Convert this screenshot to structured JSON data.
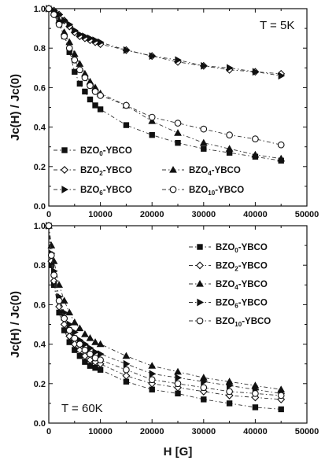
{
  "chart_data": [
    {
      "type": "line",
      "annotation": "T = 5K",
      "xlabel": "",
      "ylabel": "Jc(H) / Jc(0)",
      "xlim": [
        0,
        50000
      ],
      "ylim": [
        0.0,
        1.0
      ],
      "xticks": [
        "0",
        "10000",
        "20000",
        "30000",
        "40000",
        "50000"
      ],
      "yticks": [
        "0.0",
        "0.2",
        "0.4",
        "0.6",
        "0.8",
        "1.0"
      ],
      "legend_position": "bottom-left",
      "series": [
        {
          "name": "BZO0-YBCO",
          "label_base": "BZO",
          "label_sub": "0",
          "label_tail": "-YBCO",
          "marker": "square-filled",
          "x": [
            0,
            1000,
            2000,
            3000,
            4000,
            5000,
            6000,
            7000,
            8000,
            9000,
            10000,
            15000,
            20000,
            25000,
            30000,
            35000,
            40000,
            45000
          ],
          "y": [
            1.0,
            0.98,
            0.93,
            0.86,
            0.78,
            0.68,
            0.62,
            0.58,
            0.54,
            0.51,
            0.49,
            0.41,
            0.36,
            0.32,
            0.29,
            0.27,
            0.25,
            0.23
          ]
        },
        {
          "name": "BZO2-YBCO",
          "label_base": "BZO",
          "label_sub": "2",
          "label_tail": "-YBCO",
          "marker": "diamond-open",
          "x": [
            0,
            1000,
            2000,
            3000,
            4000,
            5000,
            6000,
            7000,
            8000,
            9000,
            10000,
            15000,
            20000,
            25000,
            30000,
            35000,
            40000,
            45000
          ],
          "y": [
            1.0,
            0.99,
            0.97,
            0.94,
            0.91,
            0.88,
            0.86,
            0.85,
            0.84,
            0.83,
            0.82,
            0.79,
            0.76,
            0.73,
            0.71,
            0.69,
            0.68,
            0.67
          ]
        },
        {
          "name": "BZO4-YBCO",
          "label_base": "BZO",
          "label_sub": "4",
          "label_tail": "-YBCO",
          "marker": "triangle-filled",
          "x": [
            0,
            1000,
            2000,
            3000,
            4000,
            5000,
            6000,
            7000,
            8000,
            9000,
            10000,
            15000,
            20000,
            25000,
            30000,
            35000,
            40000,
            45000
          ],
          "y": [
            1.0,
            0.98,
            0.94,
            0.88,
            0.83,
            0.77,
            0.72,
            0.67,
            0.63,
            0.6,
            0.57,
            0.51,
            0.43,
            0.37,
            0.32,
            0.29,
            0.26,
            0.24
          ]
        },
        {
          "name": "BZO6-YBCO",
          "label_base": "BZO",
          "label_sub": "6",
          "label_tail": "-YBCO",
          "marker": "right-triangle-filled",
          "x": [
            0,
            1000,
            2000,
            3000,
            4000,
            5000,
            6000,
            7000,
            8000,
            9000,
            10000,
            15000,
            20000,
            25000,
            30000,
            35000,
            40000,
            45000
          ],
          "y": [
            1.0,
            0.99,
            0.97,
            0.94,
            0.92,
            0.89,
            0.87,
            0.86,
            0.85,
            0.84,
            0.83,
            0.79,
            0.76,
            0.74,
            0.71,
            0.7,
            0.68,
            0.66
          ]
        },
        {
          "name": "BZO10-YBCO",
          "label_base": "BZO",
          "label_sub": "10",
          "label_tail": "-YBCO",
          "marker": "circle-open",
          "x": [
            0,
            1000,
            2000,
            3000,
            4000,
            5000,
            6000,
            7000,
            8000,
            9000,
            10000,
            15000,
            20000,
            25000,
            30000,
            35000,
            40000,
            45000
          ],
          "y": [
            1.0,
            0.97,
            0.92,
            0.86,
            0.8,
            0.74,
            0.69,
            0.65,
            0.61,
            0.58,
            0.56,
            0.51,
            0.45,
            0.42,
            0.39,
            0.36,
            0.34,
            0.31
          ]
        }
      ]
    },
    {
      "type": "line",
      "annotation": "T = 60K",
      "xlabel": "H [G]",
      "ylabel": "Jc(H) / Jc(0)",
      "xlim": [
        0,
        50000
      ],
      "ylim": [
        0.0,
        1.0
      ],
      "xticks": [
        "0",
        "10000",
        "20000",
        "30000",
        "40000",
        "50000"
      ],
      "yticks": [
        "0.0",
        "0.2",
        "0.4",
        "0.6",
        "0.8",
        "1.0"
      ],
      "legend_position": "top-right",
      "series": [
        {
          "name": "BZO0-YBCO",
          "label_base": "BZO",
          "label_sub": "0",
          "label_tail": "-YBCO",
          "marker": "square-filled",
          "x": [
            0,
            500,
            1000,
            2000,
            3000,
            4000,
            5000,
            6000,
            7000,
            8000,
            9000,
            10000,
            15000,
            20000,
            25000,
            30000,
            35000,
            40000,
            45000
          ],
          "y": [
            1.0,
            0.8,
            0.7,
            0.56,
            0.47,
            0.41,
            0.37,
            0.34,
            0.31,
            0.29,
            0.28,
            0.27,
            0.21,
            0.17,
            0.15,
            0.12,
            0.1,
            0.08,
            0.07
          ]
        },
        {
          "name": "BZO2-YBCO",
          "label_base": "BZO",
          "label_sub": "2",
          "label_tail": "-YBCO",
          "marker": "diamond-open",
          "x": [
            0,
            500,
            1000,
            2000,
            3000,
            4000,
            5000,
            6000,
            7000,
            8000,
            9000,
            10000,
            15000,
            20000,
            25000,
            30000,
            35000,
            40000,
            45000
          ],
          "y": [
            1.0,
            0.82,
            0.72,
            0.59,
            0.5,
            0.44,
            0.4,
            0.37,
            0.34,
            0.32,
            0.31,
            0.3,
            0.24,
            0.2,
            0.18,
            0.16,
            0.14,
            0.13,
            0.12
          ]
        },
        {
          "name": "BZO4-YBCO",
          "label_base": "BZO",
          "label_sub": "4",
          "label_tail": "-YBCO",
          "marker": "triangle-filled",
          "x": [
            0,
            500,
            1000,
            2000,
            3000,
            4000,
            5000,
            6000,
            7000,
            8000,
            9000,
            10000,
            15000,
            20000,
            25000,
            30000,
            35000,
            40000,
            45000
          ],
          "y": [
            1.0,
            0.9,
            0.82,
            0.7,
            0.62,
            0.56,
            0.51,
            0.48,
            0.45,
            0.43,
            0.41,
            0.4,
            0.34,
            0.29,
            0.26,
            0.23,
            0.21,
            0.19,
            0.17
          ]
        },
        {
          "name": "BZO6-YBCO",
          "label_base": "BZO",
          "label_sub": "6",
          "label_tail": "-YBCO",
          "marker": "right-triangle-filled",
          "x": [
            0,
            500,
            1000,
            2000,
            3000,
            4000,
            5000,
            6000,
            7000,
            8000,
            9000,
            10000,
            15000,
            20000,
            25000,
            30000,
            35000,
            40000,
            45000
          ],
          "y": [
            1.0,
            0.86,
            0.77,
            0.64,
            0.56,
            0.5,
            0.46,
            0.42,
            0.4,
            0.38,
            0.36,
            0.35,
            0.3,
            0.25,
            0.23,
            0.21,
            0.19,
            0.17,
            0.15
          ]
        },
        {
          "name": "BZO10-YBCO",
          "label_base": "BZO",
          "label_sub": "10",
          "label_tail": "-YBCO",
          "marker": "circle-open",
          "x": [
            0,
            500,
            1000,
            2000,
            3000,
            4000,
            5000,
            6000,
            7000,
            8000,
            9000,
            10000,
            15000,
            20000,
            25000,
            30000,
            35000,
            40000,
            45000
          ],
          "y": [
            1.0,
            0.85,
            0.75,
            0.62,
            0.53,
            0.47,
            0.43,
            0.4,
            0.37,
            0.35,
            0.33,
            0.32,
            0.27,
            0.22,
            0.2,
            0.18,
            0.16,
            0.15,
            0.14
          ]
        }
      ]
    }
  ]
}
